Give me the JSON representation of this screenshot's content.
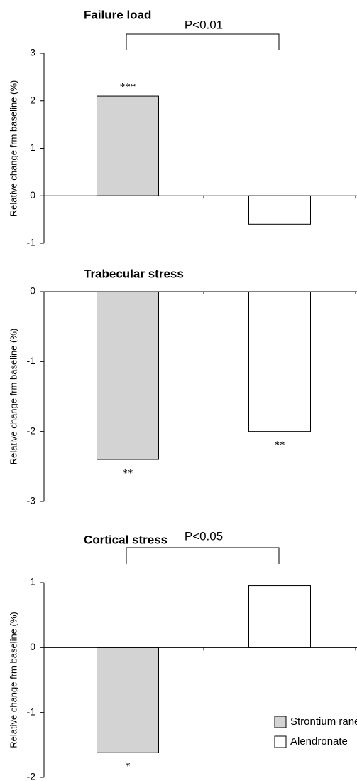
{
  "chart_data": [
    {
      "type": "bar",
      "title": "Failure load",
      "y_label": "Relative change frm baseline (%)",
      "categories": [
        null,
        null
      ],
      "values": [
        2.1,
        -0.6
      ],
      "significance": [
        "***",
        null
      ],
      "comparison": "P<0.01",
      "ylim": [
        -1,
        3
      ],
      "yticks": [
        -1,
        0,
        1,
        2,
        3
      ]
    },
    {
      "type": "bar",
      "title": "Trabecular stress",
      "y_label": "Relative change frm baseline (%)",
      "categories": [
        null,
        null
      ],
      "values": [
        -2.4,
        -2.0
      ],
      "significance": [
        "**",
        "**"
      ],
      "ylim": [
        -3,
        0
      ],
      "yticks": [
        -3,
        -2,
        -1,
        0
      ]
    },
    {
      "type": "bar",
      "title": "Cortical stress",
      "y_label": "Relative change frm baseline (%)",
      "categories": [
        null,
        null
      ],
      "values": [
        -1.62,
        0.95
      ],
      "significance": [
        "*",
        null
      ],
      "comparison": "P<0.05",
      "ylim": [
        -2,
        1
      ],
      "yticks": [
        -2,
        -1,
        0,
        1
      ]
    }
  ],
  "legend": {
    "position": "lower right",
    "entries": [
      {
        "name": "Strontium ranelate",
        "color": "#d3d3d3"
      },
      {
        "name": "Alendronate",
        "color": "#ffffff"
      }
    ]
  }
}
